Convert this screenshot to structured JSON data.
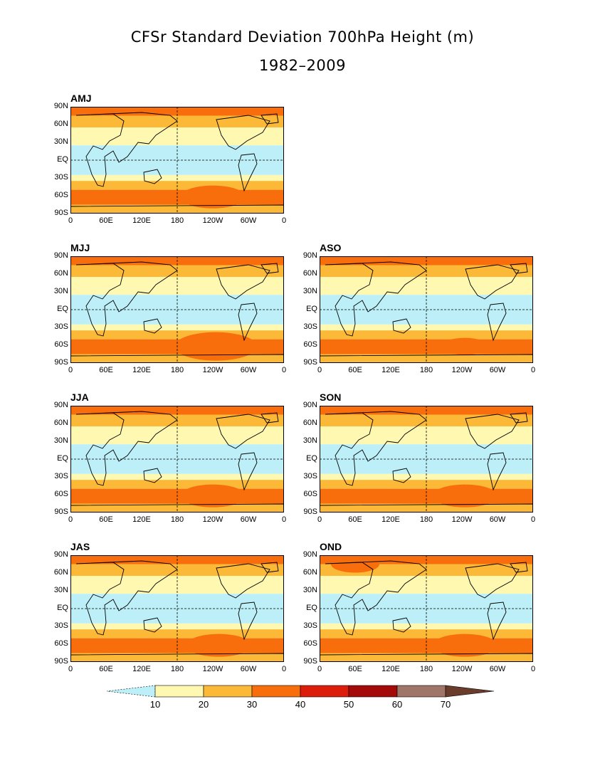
{
  "title_line1": "CFSr Standard Deviation 700hPa Height (m)",
  "title_line2": "1982–2009",
  "chart_data": {
    "type": "heatmap",
    "title": "CFSr Standard Deviation 700hPa Height (m)",
    "subtitle": "1982–2009",
    "panels": [
      "AMJ",
      "MJJ",
      "ASO",
      "JJA",
      "SON",
      "JAS",
      "OND"
    ],
    "y_ticks": [
      "90N",
      "60N",
      "30N",
      "EQ",
      "30S",
      "60S",
      "90S"
    ],
    "x_ticks": [
      "0",
      "60E",
      "120E",
      "180",
      "120W",
      "60W",
      "0"
    ],
    "xlim": [
      0,
      360
    ],
    "ylim": [
      -90,
      90
    ],
    "colorbar": {
      "levels": [
        "10",
        "20",
        "30",
        "40",
        "50",
        "60",
        "70"
      ],
      "colors": [
        "#bdeff8",
        "#fff8b0",
        "#fbb937",
        "#f86e0c",
        "#dd1d0b",
        "#a50a0a",
        "#a0766a",
        "#6a3c2c"
      ]
    },
    "zonal_profile_note_free": true,
    "zonal_bands": [
      {
        "lat": [
          75,
          90
        ],
        "level": 3
      },
      {
        "lat": [
          55,
          75
        ],
        "level": 2
      },
      {
        "lat": [
          35,
          55
        ],
        "level": 1
      },
      {
        "lat": [
          25,
          35
        ],
        "level": 1
      },
      {
        "lat": [
          -25,
          25
        ],
        "level": 0
      },
      {
        "lat": [
          -35,
          -25
        ],
        "level": 1
      },
      {
        "lat": [
          -50,
          -35
        ],
        "level": 2
      },
      {
        "lat": [
          -75,
          -50
        ],
        "level": 3
      },
      {
        "lat": [
          -90,
          -75
        ],
        "level": 2
      }
    ],
    "maxima": [
      {
        "panel": "AMJ",
        "lon": 240,
        "lat": -62,
        "level": 5
      },
      {
        "panel": "MJJ",
        "lon": 245,
        "lat": -62,
        "level": 6
      },
      {
        "panel": "ASO",
        "lon": 245,
        "lat": -62,
        "level": 4
      },
      {
        "panel": "JJA",
        "lon": 240,
        "lat": -62,
        "level": 5
      },
      {
        "panel": "SON",
        "lon": 245,
        "lat": -62,
        "level": 5
      },
      {
        "panel": "JAS",
        "lon": 250,
        "lat": -62,
        "level": 5
      },
      {
        "panel": "OND",
        "lon": 245,
        "lat": -62,
        "level": 5
      },
      {
        "panel": "OND",
        "lon": 60,
        "lat": 75,
        "level": 4
      }
    ]
  }
}
